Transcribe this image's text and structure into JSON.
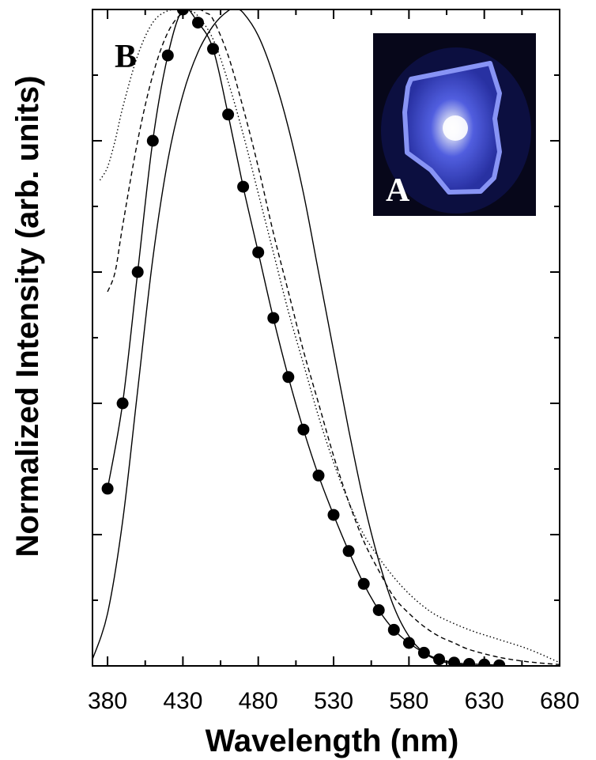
{
  "chart_data": {
    "type": "line",
    "title": "",
    "xlabel": "Wavelength (nm)",
    "ylabel": "Normalized Intensity (arb. units)",
    "xlim": [
      370,
      680
    ],
    "ylim": [
      0,
      1.0
    ],
    "grid": false,
    "x_ticks": [
      380,
      430,
      480,
      530,
      580,
      630,
      680
    ],
    "x_tick_labels": [
      "380",
      "430",
      "480",
      "530",
      "580",
      "630",
      "680"
    ],
    "y_ticks": [
      0.2,
      0.4,
      0.6,
      0.8
    ],
    "panel_labels": {
      "main": "B",
      "inset": "A"
    },
    "inset": {
      "description": "photo",
      "colors": [
        "#0a0a1e",
        "#3a46d8",
        "#ffffff"
      ]
    },
    "series": [
      {
        "style": "solid-with-markers",
        "marker": "filled-circle",
        "color": "#000000",
        "x": [
          380,
          390,
          400,
          410,
          420,
          430,
          440,
          450,
          460,
          470,
          480,
          490,
          500,
          510,
          520,
          530,
          540,
          550,
          560,
          570,
          580,
          590,
          600,
          610,
          620,
          630,
          640
        ],
        "y": [
          0.27,
          0.4,
          0.6,
          0.8,
          0.93,
          1.0,
          0.98,
          0.94,
          0.84,
          0.73,
          0.63,
          0.53,
          0.44,
          0.36,
          0.29,
          0.23,
          0.175,
          0.125,
          0.085,
          0.055,
          0.035,
          0.02,
          0.01,
          0.005,
          0.003,
          0.002,
          0.001
        ]
      },
      {
        "style": "solid",
        "color": "#000000",
        "x": [
          370,
          380,
          390,
          400,
          410,
          420,
          430,
          440,
          450,
          460,
          465,
          470,
          480,
          490,
          500,
          510,
          520,
          530,
          540,
          550,
          560,
          570,
          580,
          590,
          600,
          610,
          620
        ],
        "y": [
          0.01,
          0.08,
          0.22,
          0.42,
          0.62,
          0.77,
          0.87,
          0.935,
          0.975,
          0.998,
          1.0,
          0.995,
          0.96,
          0.9,
          0.82,
          0.72,
          0.6,
          0.48,
          0.36,
          0.25,
          0.16,
          0.09,
          0.045,
          0.02,
          0.008,
          0.003,
          0.001
        ]
      },
      {
        "style": "dashed",
        "color": "#000000",
        "x": [
          380,
          385,
          390,
          400,
          410,
          420,
          430,
          440,
          445,
          450,
          460,
          470,
          480,
          490,
          500,
          510,
          520,
          530,
          540,
          550,
          560,
          570,
          580,
          590,
          600,
          610,
          620,
          640,
          660,
          680
        ],
        "y": [
          0.57,
          0.6,
          0.67,
          0.8,
          0.9,
          0.965,
          0.995,
          1.0,
          0.995,
          0.985,
          0.93,
          0.85,
          0.76,
          0.66,
          0.57,
          0.48,
          0.4,
          0.32,
          0.25,
          0.19,
          0.145,
          0.105,
          0.08,
          0.06,
          0.045,
          0.035,
          0.025,
          0.013,
          0.006,
          0.002
        ]
      },
      {
        "style": "dotted",
        "color": "#000000",
        "x": [
          375,
          380,
          385,
          390,
          400,
          410,
          420,
          430,
          435,
          440,
          450,
          460,
          470,
          480,
          490,
          500,
          510,
          520,
          530,
          540,
          550,
          560,
          570,
          580,
          590,
          600,
          620,
          640,
          660,
          680
        ],
        "y": [
          0.74,
          0.76,
          0.8,
          0.85,
          0.93,
          0.98,
          0.998,
          1.0,
          0.998,
          0.99,
          0.955,
          0.89,
          0.81,
          0.72,
          0.63,
          0.54,
          0.46,
          0.38,
          0.31,
          0.25,
          0.2,
          0.165,
          0.135,
          0.11,
          0.09,
          0.075,
          0.055,
          0.04,
          0.025,
          0.005
        ]
      }
    ]
  }
}
